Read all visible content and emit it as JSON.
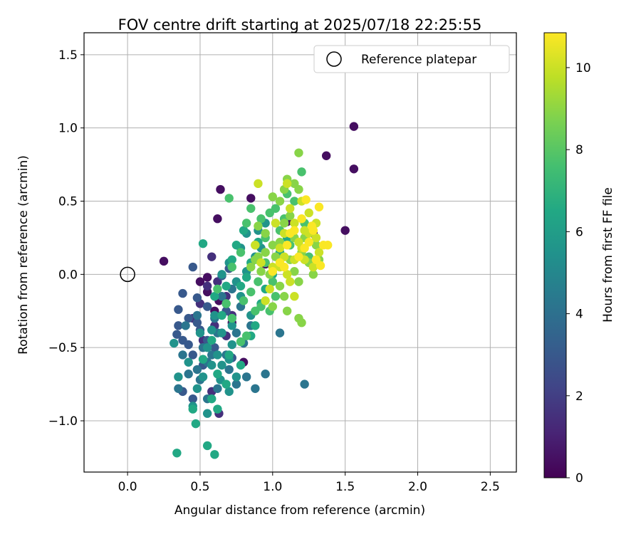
{
  "chart_data": {
    "type": "scatter",
    "title": "FOV centre drift starting at 2025/07/18 22:25:55",
    "xlabel": "Angular distance from reference (arcmin)",
    "ylabel": "Rotation from reference (arcmin)",
    "xlim": [
      -0.3,
      2.68
    ],
    "ylim": [
      -1.35,
      1.65
    ],
    "xticks": [
      0.0,
      0.5,
      1.0,
      1.5,
      2.0,
      2.5
    ],
    "xtick_labels": [
      "0.0",
      "0.5",
      "1.0",
      "1.5",
      "2.0",
      "2.5"
    ],
    "yticks": [
      -1.0,
      -0.5,
      0.0,
      0.5,
      1.0,
      1.5
    ],
    "ytick_labels": [
      "−1.0",
      "−0.5",
      "0.0",
      "0.5",
      "1.0",
      "1.5"
    ],
    "grid": true,
    "colormap": "viridis",
    "colorbar": {
      "label": "Hours from first FF file",
      "min": 0,
      "max": 10.85,
      "ticks": [
        0,
        2,
        4,
        6,
        8,
        10
      ],
      "tick_labels": [
        "0",
        "2",
        "4",
        "6",
        "8",
        "10"
      ]
    },
    "legend": {
      "position": "top-right",
      "entries": [
        "Reference platepar"
      ]
    },
    "reference_point": {
      "x": 0.0,
      "y": 0.0
    },
    "point_groups": [
      {
        "hours": 0.4,
        "points": [
          [
            1.56,
            1.01
          ],
          [
            1.56,
            0.72
          ],
          [
            1.37,
            0.81
          ],
          [
            1.5,
            0.3
          ],
          [
            0.85,
            0.52
          ],
          [
            0.64,
            0.58
          ],
          [
            0.62,
            0.38
          ],
          [
            0.25,
            0.09
          ],
          [
            0.55,
            -0.02
          ],
          [
            0.55,
            -0.12
          ],
          [
            0.6,
            -0.25
          ],
          [
            0.72,
            -0.33
          ],
          [
            0.8,
            -0.6
          ],
          [
            1.28,
            0.28
          ],
          [
            0.95,
            0.07
          ],
          [
            1.1,
            0.36
          ],
          [
            0.5,
            -0.05
          ],
          [
            0.63,
            -0.18
          ]
        ]
      },
      {
        "hours": 1.5,
        "points": [
          [
            0.58,
            0.12
          ],
          [
            0.55,
            -0.08
          ],
          [
            0.5,
            -0.2
          ],
          [
            0.68,
            -0.42
          ],
          [
            0.63,
            -0.95
          ],
          [
            0.58,
            -0.8
          ],
          [
            0.72,
            -0.28
          ],
          [
            0.52,
            -0.45
          ],
          [
            0.45,
            -0.3
          ],
          [
            0.62,
            -0.05
          ],
          [
            0.68,
            -0.15
          ],
          [
            0.6,
            -0.35
          ]
        ]
      },
      {
        "hours": 3.0,
        "points": [
          [
            0.45,
            0.05
          ],
          [
            0.38,
            -0.13
          ],
          [
            0.35,
            -0.24
          ],
          [
            0.48,
            -0.16
          ],
          [
            0.42,
            -0.3
          ],
          [
            0.34,
            -0.41
          ],
          [
            0.38,
            -0.45
          ],
          [
            0.42,
            -0.48
          ],
          [
            0.5,
            -0.38
          ],
          [
            0.38,
            -0.8
          ],
          [
            0.45,
            -0.85
          ],
          [
            0.35,
            -0.35
          ],
          [
            0.55,
            -0.22
          ],
          [
            0.48,
            -0.33
          ],
          [
            0.68,
            -0.25
          ],
          [
            0.72,
            -0.57
          ],
          [
            0.52,
            -0.62
          ],
          [
            0.6,
            -0.5
          ],
          [
            0.45,
            -0.55
          ],
          [
            0.65,
            -0.01
          ],
          [
            0.7,
            0.04
          ],
          [
            0.55,
            -0.45
          ]
        ]
      },
      {
        "hours": 4.2,
        "points": [
          [
            0.35,
            -0.78
          ],
          [
            0.42,
            -0.68
          ],
          [
            0.5,
            -0.72
          ],
          [
            0.55,
            -0.85
          ],
          [
            0.62,
            -0.78
          ],
          [
            0.7,
            -0.65
          ],
          [
            0.75,
            -0.75
          ],
          [
            0.82,
            -0.7
          ],
          [
            0.88,
            -0.78
          ],
          [
            0.95,
            -0.68
          ],
          [
            1.22,
            -0.75
          ],
          [
            1.05,
            -0.4
          ],
          [
            0.65,
            -0.15
          ],
          [
            0.72,
            -0.1
          ],
          [
            0.78,
            -0.22
          ],
          [
            0.6,
            -0.3
          ],
          [
            0.48,
            -0.28
          ],
          [
            0.38,
            -0.55
          ],
          [
            0.4,
            -0.35
          ],
          [
            0.55,
            -0.6
          ],
          [
            0.68,
            -0.55
          ],
          [
            0.58,
            -0.55
          ],
          [
            0.62,
            -0.4
          ],
          [
            0.75,
            -0.4
          ],
          [
            0.85,
            -0.35
          ],
          [
            0.8,
            -0.47
          ],
          [
            0.48,
            -0.65
          ],
          [
            0.52,
            -0.5
          ]
        ]
      },
      {
        "hours": 5.5,
        "points": [
          [
            0.32,
            -0.47
          ],
          [
            0.35,
            -0.7
          ],
          [
            0.42,
            -0.6
          ],
          [
            0.48,
            -0.78
          ],
          [
            0.52,
            -0.7
          ],
          [
            0.58,
            -0.62
          ],
          [
            0.64,
            -0.72
          ],
          [
            0.7,
            -0.8
          ],
          [
            0.75,
            -0.7
          ],
          [
            0.65,
            -0.4
          ],
          [
            0.72,
            -0.35
          ],
          [
            0.68,
            -0.2
          ],
          [
            0.75,
            -0.05
          ],
          [
            0.78,
            -0.15
          ],
          [
            0.82,
            0.02
          ],
          [
            0.88,
            0.12
          ],
          [
            0.92,
            0.18
          ],
          [
            0.85,
            -0.28
          ],
          [
            0.62,
            -0.55
          ],
          [
            0.55,
            -0.5
          ],
          [
            0.5,
            -0.4
          ],
          [
            0.6,
            -0.28
          ],
          [
            0.7,
            -0.58
          ],
          [
            0.45,
            -0.9
          ],
          [
            0.55,
            -0.95
          ],
          [
            0.65,
            -0.62
          ],
          [
            0.58,
            -0.38
          ],
          [
            0.72,
            -0.48
          ],
          [
            0.65,
            0.0
          ],
          [
            0.7,
            0.08
          ],
          [
            0.78,
            0.18
          ],
          [
            0.82,
            0.28
          ],
          [
            0.9,
            0.3
          ],
          [
            0.95,
            0.35
          ]
        ]
      },
      {
        "hours": 6.5,
        "points": [
          [
            0.34,
            -1.22
          ],
          [
            0.55,
            -1.17
          ],
          [
            0.6,
            -1.23
          ],
          [
            0.47,
            -1.02
          ],
          [
            0.45,
            -0.92
          ],
          [
            0.62,
            -0.92
          ],
          [
            0.58,
            -0.85
          ],
          [
            0.52,
            -0.58
          ],
          [
            0.58,
            -0.45
          ],
          [
            0.62,
            -0.68
          ],
          [
            0.68,
            -0.75
          ],
          [
            0.72,
            -0.3
          ],
          [
            0.78,
            -0.08
          ],
          [
            0.82,
            -0.02
          ],
          [
            0.85,
            0.08
          ],
          [
            0.9,
            0.22
          ],
          [
            0.72,
            0.1
          ],
          [
            0.75,
            0.2
          ],
          [
            0.8,
            0.3
          ],
          [
            0.52,
            0.21
          ],
          [
            0.68,
            -0.08
          ],
          [
            0.6,
            -0.15
          ],
          [
            0.65,
            -0.28
          ],
          [
            0.7,
            -0.55
          ],
          [
            0.78,
            -0.62
          ],
          [
            0.85,
            -0.42
          ],
          [
            0.88,
            -0.35
          ],
          [
            0.92,
            -0.2
          ],
          [
            0.95,
            -0.1
          ],
          [
            1.0,
            0.0
          ],
          [
            1.05,
            0.15
          ],
          [
            1.1,
            0.25
          ]
        ]
      },
      {
        "hours": 7.7,
        "points": [
          [
            0.7,
            0.52
          ],
          [
            0.72,
            0.05
          ],
          [
            0.78,
            0.15
          ],
          [
            0.82,
            0.35
          ],
          [
            0.85,
            0.45
          ],
          [
            0.92,
            0.38
          ],
          [
            0.98,
            0.42
          ],
          [
            1.02,
            0.45
          ],
          [
            1.1,
            0.55
          ],
          [
            1.08,
            0.38
          ],
          [
            1.15,
            0.5
          ],
          [
            0.88,
            0.2
          ],
          [
            0.95,
            0.08
          ],
          [
            1.0,
            -0.05
          ],
          [
            1.02,
            -0.15
          ],
          [
            0.98,
            -0.25
          ],
          [
            0.92,
            -0.22
          ],
          [
            0.88,
            -0.25
          ],
          [
            0.82,
            -0.42
          ],
          [
            0.78,
            -0.46
          ],
          [
            0.72,
            -0.3
          ],
          [
            0.62,
            -0.1
          ],
          [
            0.68,
            -0.2
          ],
          [
            1.2,
            0.7
          ],
          [
            1.22,
            0.35
          ],
          [
            1.25,
            0.12
          ],
          [
            1.12,
            0.2
          ],
          [
            1.05,
            0.3
          ],
          [
            0.95,
            0.25
          ],
          [
            0.9,
            -0.05
          ],
          [
            0.85,
            -0.12
          ],
          [
            0.8,
            -0.18
          ]
        ]
      },
      {
        "hours": 8.9,
        "points": [
          [
            1.18,
            0.83
          ],
          [
            1.08,
            0.58
          ],
          [
            1.1,
            0.65
          ],
          [
            1.15,
            0.62
          ],
          [
            1.18,
            0.58
          ],
          [
            1.05,
            0.5
          ],
          [
            1.0,
            0.53
          ],
          [
            0.95,
            0.28
          ],
          [
            1.0,
            0.2
          ],
          [
            1.02,
            0.12
          ],
          [
            0.98,
            0.0
          ],
          [
            0.92,
            0.02
          ],
          [
            0.88,
            0.1
          ],
          [
            1.05,
            -0.08
          ],
          [
            1.08,
            -0.15
          ],
          [
            1.1,
            -0.25
          ],
          [
            1.0,
            -0.22
          ],
          [
            1.18,
            -0.3
          ],
          [
            1.2,
            -0.33
          ],
          [
            0.9,
            0.12
          ],
          [
            1.12,
            0.1
          ],
          [
            1.15,
            0.02
          ],
          [
            1.2,
            0.15
          ],
          [
            1.25,
            0.08
          ],
          [
            1.3,
            0.2
          ],
          [
            1.32,
            0.1
          ],
          [
            0.85,
            0.05
          ],
          [
            0.9,
            0.33
          ],
          [
            1.08,
            0.35
          ],
          [
            1.12,
            0.4
          ],
          [
            1.15,
            0.25
          ],
          [
            1.05,
            0.22
          ],
          [
            0.95,
            0.15
          ],
          [
            1.22,
            0.25
          ],
          [
            1.28,
            0.0
          ],
          [
            1.18,
            -0.05
          ]
        ]
      },
      {
        "hours": 10.0,
        "points": [
          [
            0.9,
            0.62
          ],
          [
            1.1,
            0.62
          ],
          [
            1.12,
            0.45
          ],
          [
            1.15,
            0.35
          ],
          [
            1.2,
            0.5
          ],
          [
            1.25,
            0.42
          ],
          [
            1.08,
            0.28
          ],
          [
            1.05,
            0.18
          ],
          [
            1.0,
            0.05
          ],
          [
            0.98,
            -0.1
          ],
          [
            0.95,
            -0.18
          ],
          [
            1.05,
            0.05
          ],
          [
            1.1,
            0.0
          ],
          [
            1.15,
            0.1
          ],
          [
            1.2,
            0.18
          ],
          [
            1.25,
            0.28
          ],
          [
            1.3,
            0.35
          ],
          [
            1.32,
            0.15
          ],
          [
            1.28,
            0.05
          ],
          [
            1.02,
            0.35
          ],
          [
            0.92,
            0.08
          ],
          [
            0.88,
            0.2
          ],
          [
            1.12,
            -0.05
          ],
          [
            1.18,
            0.22
          ],
          [
            1.22,
            0.3
          ],
          [
            1.08,
            0.12
          ],
          [
            1.15,
            -0.15
          ],
          [
            1.22,
            0.1
          ],
          [
            1.3,
            0.25
          ]
        ]
      },
      {
        "hours": 10.8,
        "points": [
          [
            1.23,
            0.51
          ],
          [
            1.32,
            0.46
          ],
          [
            1.27,
            0.33
          ],
          [
            1.28,
            0.3
          ],
          [
            1.35,
            0.2
          ],
          [
            1.38,
            0.2
          ],
          [
            1.2,
            0.38
          ],
          [
            1.25,
            0.22
          ],
          [
            1.18,
            0.12
          ],
          [
            1.1,
            0.2
          ],
          [
            1.05,
            0.08
          ],
          [
            1.0,
            0.02
          ],
          [
            1.15,
            0.3
          ],
          [
            1.3,
            0.1
          ],
          [
            1.33,
            0.06
          ],
          [
            1.22,
            0.18
          ],
          [
            1.12,
            0.28
          ],
          [
            1.08,
            0.05
          ]
        ]
      }
    ]
  }
}
